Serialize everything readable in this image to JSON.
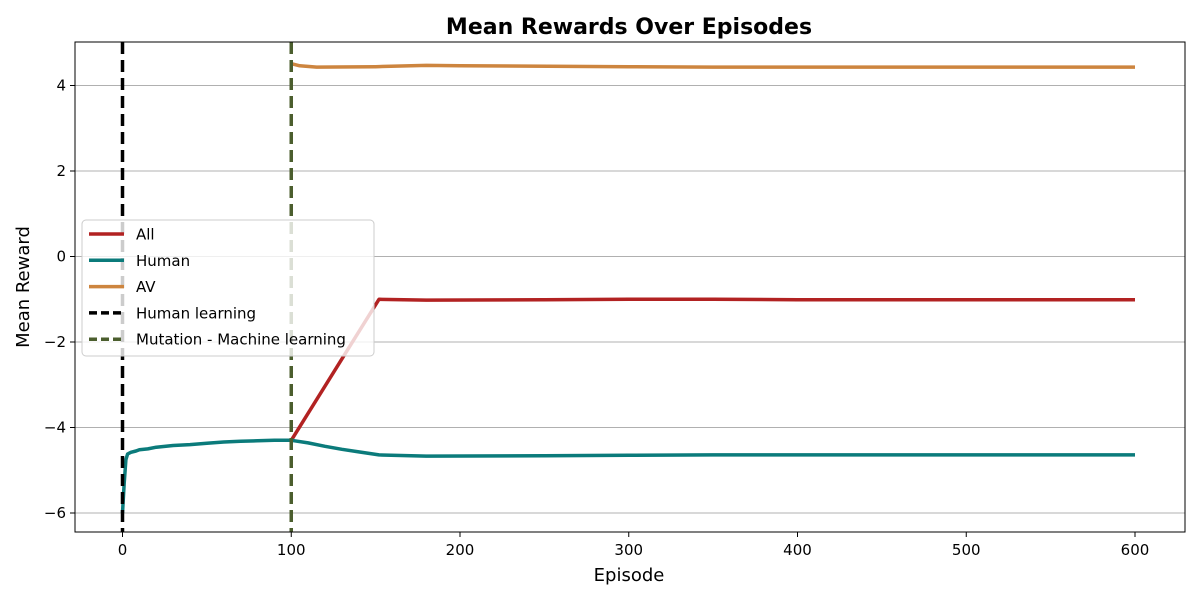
{
  "chart_data": {
    "type": "line",
    "title": "Mean Rewards Over Episodes",
    "xlabel": "Episode",
    "ylabel": "Mean Reward",
    "xlim": [
      -29,
      630
    ],
    "ylim": [
      -6.45,
      5.0
    ],
    "xticks": [
      0,
      100,
      200,
      300,
      400,
      500,
      600
    ],
    "yticks": [
      -6,
      -4,
      -2,
      0,
      2,
      4
    ],
    "ytick_labels": [
      "−6",
      "−4",
      "−2",
      "0",
      "2",
      "4"
    ],
    "grid": "horizontal",
    "legend_position": "center-left",
    "series": [
      {
        "name": "All",
        "color": "#b22222",
        "x": [
          100,
          152,
          180,
          250,
          300,
          350,
          400,
          500,
          600
        ],
        "y": [
          -4.3,
          -1.0,
          -1.02,
          -1.01,
          -1.0,
          -1.0,
          -1.01,
          -1.01,
          -1.01
        ]
      },
      {
        "name": "Human",
        "color": "#0b7b7b",
        "x": [
          0,
          1,
          2,
          3,
          5,
          8,
          10,
          15,
          20,
          30,
          40,
          50,
          60,
          70,
          80,
          90,
          100,
          110,
          120,
          130,
          140,
          152,
          180,
          250,
          300,
          350,
          400,
          500,
          600
        ],
        "y": [
          -6.0,
          -5.3,
          -4.75,
          -4.62,
          -4.58,
          -4.55,
          -4.52,
          -4.5,
          -4.46,
          -4.42,
          -4.4,
          -4.37,
          -4.34,
          -4.32,
          -4.31,
          -4.3,
          -4.3,
          -4.36,
          -4.44,
          -4.51,
          -4.57,
          -4.64,
          -4.67,
          -4.66,
          -4.65,
          -4.64,
          -4.64,
          -4.64,
          -4.64
        ]
      },
      {
        "name": "AV",
        "color": "#cd853f",
        "x": [
          100,
          101,
          105,
          115,
          150,
          180,
          200,
          300,
          350,
          400,
          500,
          600
        ],
        "y": [
          4.48,
          4.5,
          4.46,
          4.43,
          4.44,
          4.47,
          4.46,
          4.44,
          4.43,
          4.43,
          4.43,
          4.43
        ]
      }
    ],
    "vlines": [
      {
        "name": "Human learning",
        "x": 0,
        "color": "#000000"
      },
      {
        "name": "Mutation - Machine learning",
        "x": 100,
        "color": "#4b5e2e"
      }
    ]
  }
}
